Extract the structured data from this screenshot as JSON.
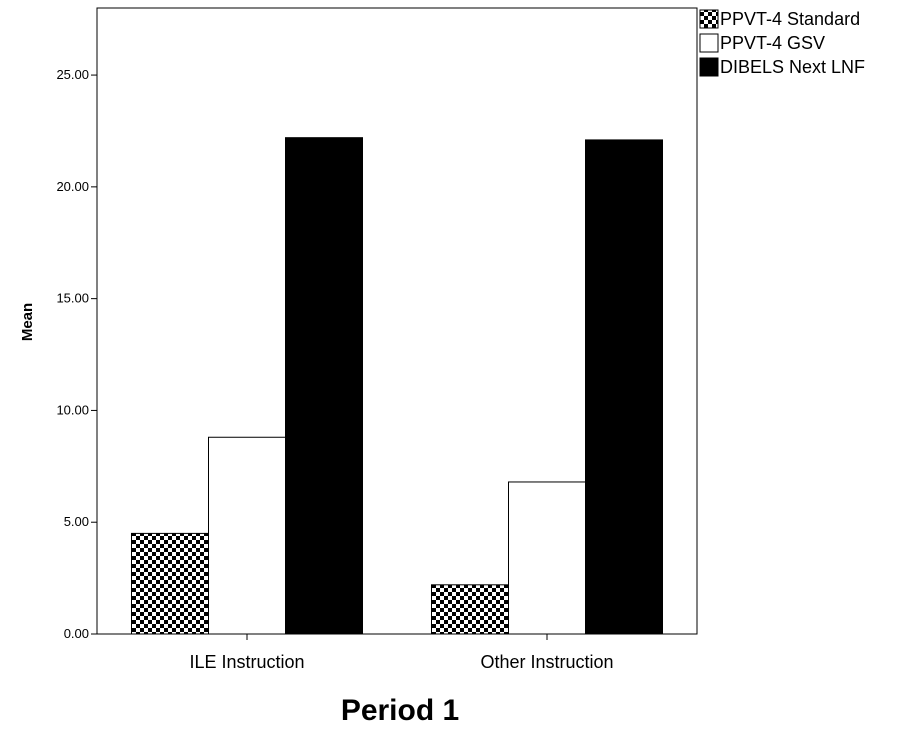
{
  "chart_data": {
    "type": "bar",
    "categories": [
      "ILE Instruction",
      "Other Instruction"
    ],
    "series": [
      {
        "name": "PPVT-4 Standard",
        "values": [
          4.5,
          2.2
        ],
        "fill": "checker"
      },
      {
        "name": "PPVT-4 GSV",
        "values": [
          8.8,
          6.8
        ],
        "fill": "#ffffff"
      },
      {
        "name": "DIBELS Next LNF",
        "values": [
          22.2,
          22.1
        ],
        "fill": "#000000"
      }
    ],
    "xlabel": "Period 1",
    "ylabel": "Mean",
    "ylim": [
      0,
      28
    ],
    "yticks": [
      "0.00",
      "5.00",
      "10.00",
      "15.00",
      "20.00",
      "25.00"
    ],
    "ytick_values": [
      0,
      5,
      10,
      15,
      20,
      25
    ],
    "grid": false,
    "legend_position": "top-right"
  }
}
